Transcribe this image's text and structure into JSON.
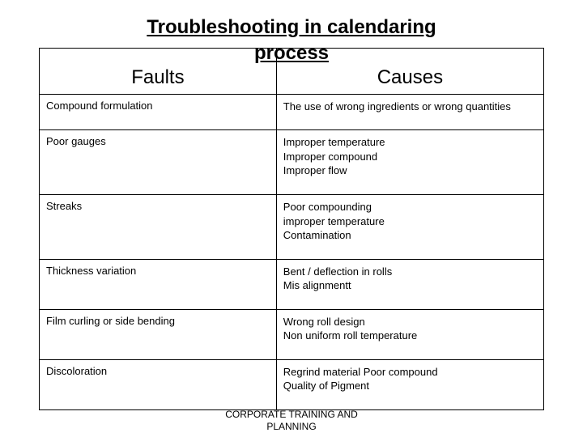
{
  "title_line1": "Troubleshooting in calendaring",
  "title_line2": "process",
  "table": {
    "headers": {
      "faults": "Faults",
      "causes": "Causes"
    },
    "rows": [
      {
        "fault": "Compound formulation",
        "causes": [
          "The use of wrong ingredients or wrong quantities"
        ]
      },
      {
        "fault": "Poor gauges",
        "causes": [
          "Improper temperature",
          "Improper compound",
          "Improper flow"
        ]
      },
      {
        "fault": "Streaks",
        "causes": [
          "Poor compounding",
          "improper temperature",
          "Contamination"
        ]
      },
      {
        "fault": "Thickness variation",
        "causes": [
          "Bent / deflection in rolls",
          "Mis alignmentt"
        ]
      },
      {
        "fault": "Film curling or side bending",
        "causes": [
          "Wrong roll design",
          "Non uniform roll temperature"
        ]
      },
      {
        "fault": "Discoloration",
        "causes": [
          "Regrind material Poor compound",
          "Quality of Pigment"
        ]
      }
    ]
  },
  "footer_line1": "CORPORATE TRAINING AND",
  "footer_line2": "PLANNING",
  "style": {
    "background_color": "#ffffff",
    "text_color": "#000000",
    "border_color": "#000000",
    "title_fontsize_pt": 18,
    "header_fontsize_pt": 18,
    "cell_fontsize_pt": 10,
    "footer_fontsize_pt": 9,
    "col_widths_pct": [
      47,
      53
    ]
  }
}
